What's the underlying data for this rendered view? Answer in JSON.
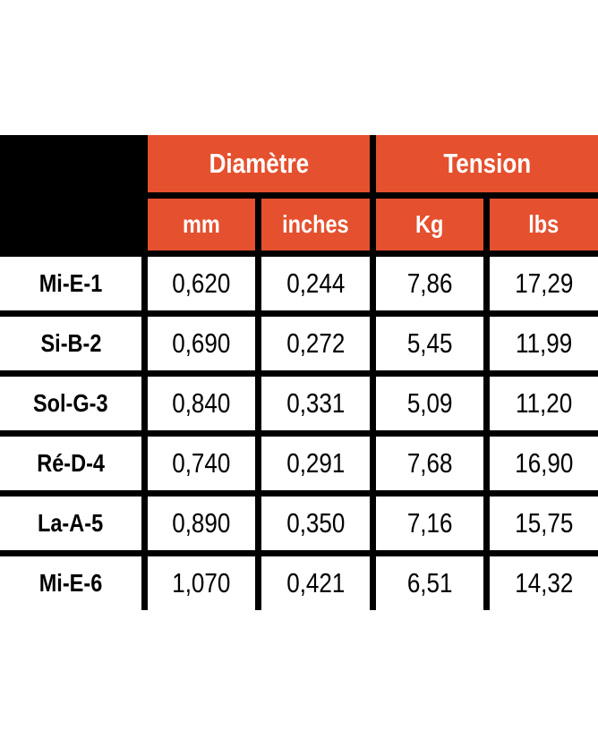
{
  "colors": {
    "accent": "#E5502F",
    "grid_line": "#000000",
    "header_text": "#FFFFFF",
    "body_text": "#000000",
    "background": "#FFFFFF"
  },
  "chart_data": {
    "type": "table",
    "title": "",
    "column_groups": [
      {
        "label": "",
        "span": 1
      },
      {
        "label": "Diamètre",
        "span": 2
      },
      {
        "label": "Tension",
        "span": 2
      }
    ],
    "columns": [
      "",
      "mm",
      "inches",
      "Kg",
      "lbs"
    ],
    "rows": [
      [
        "Mi-E-1",
        "0,620",
        "0,244",
        "7,86",
        "17,29"
      ],
      [
        "Si-B-2",
        "0,690",
        "0,272",
        "5,45",
        "11,99"
      ],
      [
        "Sol-G-3",
        "0,840",
        "0,331",
        "5,09",
        "11,20"
      ],
      [
        "Ré-D-4",
        "0,740",
        "0,291",
        "7,68",
        "16,90"
      ],
      [
        "La-A-5",
        "0,890",
        "0,350",
        "7,16",
        "15,75"
      ],
      [
        "Mi-E-6",
        "1,070",
        "0,421",
        "6,51",
        "14,32"
      ]
    ]
  }
}
